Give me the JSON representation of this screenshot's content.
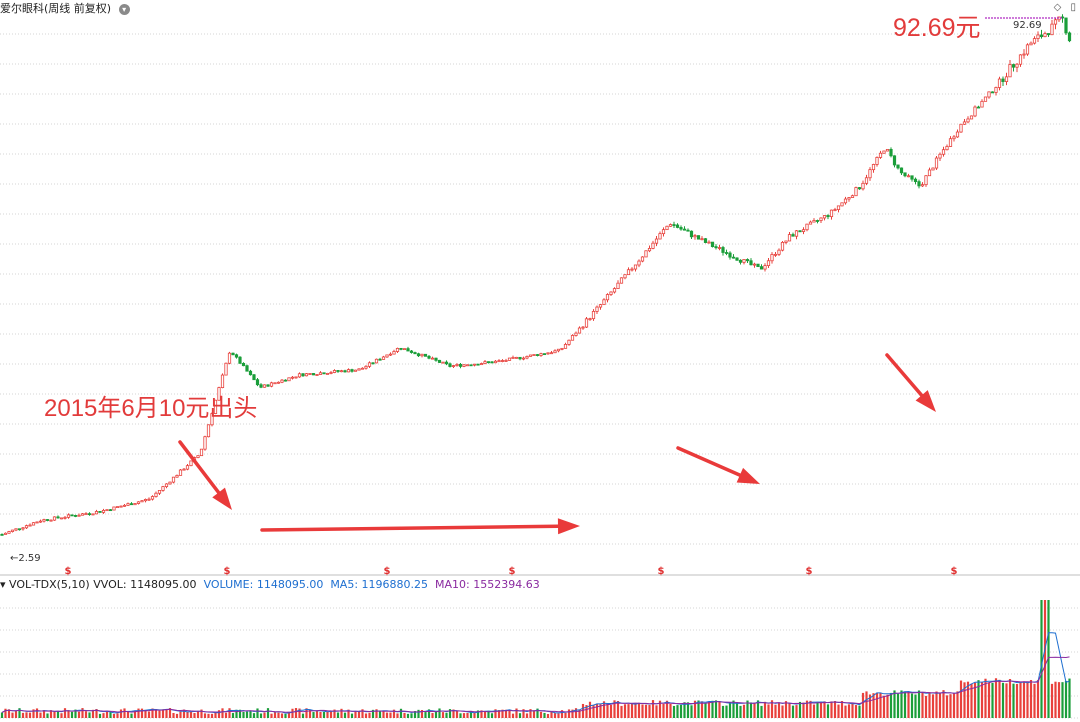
{
  "header": {
    "title": "爱尔眼科(周线 前复权)"
  },
  "annotations": {
    "max_label": "92.69元",
    "note_2015": "2015年6月10元出头"
  },
  "volume_header": {
    "indicator": "VOL-TDX(5,10)",
    "vvol": "VVOL: 1148095.00",
    "volume": "VOLUME: 1148095.00",
    "ma5": "MA5: 1196880.25",
    "ma10": "MA10: 1552394.63"
  },
  "colors": {
    "up": "#e8413c",
    "down": "#1b9e3a",
    "arrow": "#e93a3a",
    "ma5": "#1e6fd0",
    "ma10": "#8a2aa0",
    "grid": "#d6d6d6",
    "dividend_marker": "#e03030"
  },
  "chart_data": {
    "type": "candlestick",
    "title": "爱尔眼科(周线 前复权)",
    "price_min_label": "2.59",
    "price_max_label": "92.69",
    "price_range": [
      2.59,
      92.69
    ],
    "y_scale": "log",
    "dividend_marker_symbol": "$",
    "dividend_marker_count": 7,
    "anchors": [
      {
        "x": 0,
        "price": 2.9
      },
      {
        "x": 40,
        "price": 3.2
      },
      {
        "x": 100,
        "price": 3.4
      },
      {
        "x": 150,
        "price": 3.7
      },
      {
        "x": 200,
        "price": 5.0
      },
      {
        "x": 230,
        "price": 10.0
      },
      {
        "x": 260,
        "price": 7.8
      },
      {
        "x": 300,
        "price": 8.5
      },
      {
        "x": 360,
        "price": 8.8
      },
      {
        "x": 400,
        "price": 10.2
      },
      {
        "x": 450,
        "price": 9.0
      },
      {
        "x": 500,
        "price": 9.3
      },
      {
        "x": 560,
        "price": 10.0
      },
      {
        "x": 600,
        "price": 13.5
      },
      {
        "x": 640,
        "price": 18.5
      },
      {
        "x": 670,
        "price": 23.5
      },
      {
        "x": 700,
        "price": 21.0
      },
      {
        "x": 730,
        "price": 19.0
      },
      {
        "x": 760,
        "price": 17.2
      },
      {
        "x": 790,
        "price": 21.5
      },
      {
        "x": 830,
        "price": 25.0
      },
      {
        "x": 860,
        "price": 30.0
      },
      {
        "x": 885,
        "price": 39.0
      },
      {
        "x": 900,
        "price": 33.0
      },
      {
        "x": 920,
        "price": 30.0
      },
      {
        "x": 940,
        "price": 37.0
      },
      {
        "x": 960,
        "price": 45.0
      },
      {
        "x": 990,
        "price": 56.0
      },
      {
        "x": 1010,
        "price": 66.0
      },
      {
        "x": 1030,
        "price": 78.0
      },
      {
        "x": 1050,
        "price": 86.0
      },
      {
        "x": 1062,
        "price": 92.69
      },
      {
        "x": 1070,
        "price": 80.0
      }
    ],
    "volume": {
      "last": 1148095.0,
      "ma5": 1196880.25,
      "ma10": 1552394.63
    }
  }
}
